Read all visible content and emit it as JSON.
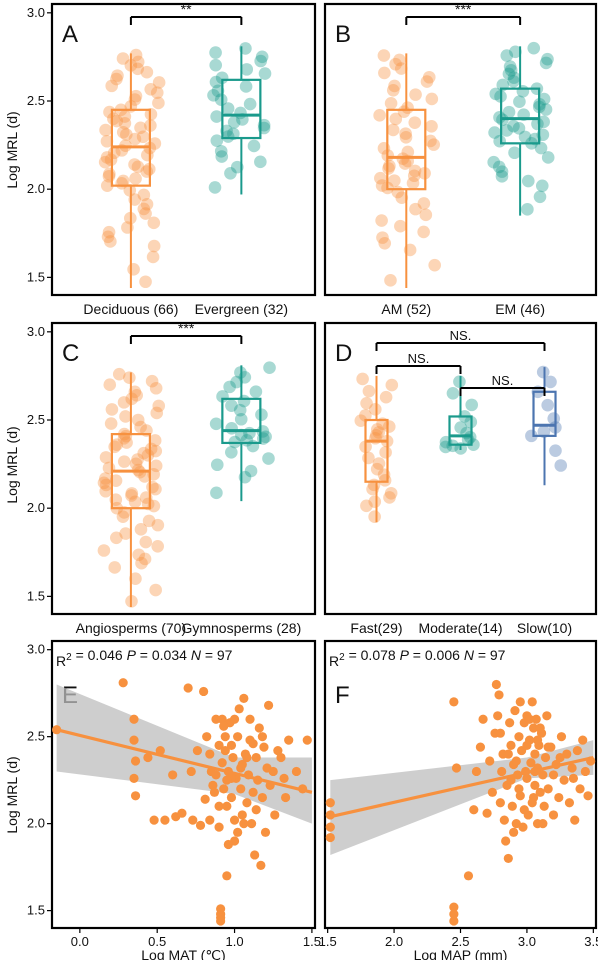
{
  "figure": {
    "y_axis_title": "Log MRL (d)",
    "colors": {
      "orange": "#F7913F",
      "teal": "#1A9A8C",
      "blue": "#4C75B0",
      "ci_band": "#BDBDBD"
    }
  },
  "chart_data": [
    {
      "panel": "A",
      "type": "box",
      "ylim": [
        1.4,
        3.05
      ],
      "yticks": [
        "1.5",
        "2.0",
        "2.5",
        "3.0"
      ],
      "significance": [
        {
          "between": [
            0,
            1
          ],
          "label": "**"
        }
      ],
      "groups": [
        {
          "label": "Deciduous (66)",
          "color": "#F7913F",
          "n": 66,
          "min": 1.44,
          "q1": 2.02,
          "median": 2.24,
          "q3": 2.45,
          "max": 2.77
        },
        {
          "label": "Evergreen (32)",
          "color": "#1A9A8C",
          "n": 32,
          "min": 1.97,
          "q1": 2.29,
          "median": 2.42,
          "q3": 2.62,
          "max": 2.81
        }
      ]
    },
    {
      "panel": "B",
      "type": "box",
      "ylim": [
        1.4,
        3.05
      ],
      "yticks": [],
      "significance": [
        {
          "between": [
            0,
            1
          ],
          "label": "***"
        }
      ],
      "groups": [
        {
          "label": "AM (52)",
          "color": "#F7913F",
          "n": 52,
          "min": 1.44,
          "q1": 2.0,
          "median": 2.18,
          "q3": 2.45,
          "max": 2.77
        },
        {
          "label": "EM (46)",
          "color": "#1A9A8C",
          "n": 46,
          "min": 1.85,
          "q1": 2.26,
          "median": 2.4,
          "q3": 2.57,
          "max": 2.81
        }
      ]
    },
    {
      "panel": "C",
      "type": "box",
      "ylim": [
        1.4,
        3.05
      ],
      "yticks": [
        "1.5",
        "2.0",
        "2.5",
        "3.0"
      ],
      "significance": [
        {
          "between": [
            0,
            1
          ],
          "label": "***"
        }
      ],
      "groups": [
        {
          "label": "Angiosperms (70)",
          "color": "#F7913F",
          "n": 70,
          "min": 1.44,
          "q1": 2.0,
          "median": 2.21,
          "q3": 2.42,
          "max": 2.77
        },
        {
          "label": "Gymnosperms (28)",
          "color": "#1A9A8C",
          "n": 28,
          "min": 2.04,
          "q1": 2.37,
          "median": 2.44,
          "q3": 2.62,
          "max": 2.81
        }
      ]
    },
    {
      "panel": "D",
      "type": "box",
      "ylim": [
        1.4,
        3.05
      ],
      "yticks": [],
      "significance": [
        {
          "between": [
            0,
            1
          ],
          "label": "NS."
        },
        {
          "between": [
            1,
            2
          ],
          "label": "NS."
        },
        {
          "between": [
            0,
            2
          ],
          "label": "NS."
        }
      ],
      "groups": [
        {
          "label": "Fast(29)",
          "color": "#F7913F",
          "n": 29,
          "min": 1.92,
          "q1": 2.15,
          "median": 2.38,
          "q3": 2.5,
          "max": 2.75
        },
        {
          "label": "Moderate(14)",
          "color": "#1A9A8C",
          "n": 14,
          "min": 2.33,
          "q1": 2.36,
          "median": 2.41,
          "q3": 2.52,
          "max": 2.75
        },
        {
          "label": "Slow(10)",
          "color": "#4C75B0",
          "n": 10,
          "min": 2.13,
          "q1": 2.41,
          "median": 2.47,
          "q3": 2.66,
          "max": 2.8
        }
      ]
    },
    {
      "panel": "E",
      "type": "scatter",
      "xlabel": "Log MAT (℃)",
      "xlim": [
        -0.18,
        1.52
      ],
      "ylim": [
        1.4,
        3.05
      ],
      "xticks": [
        "0.0",
        "0.5",
        "1.0",
        "1.5"
      ],
      "yticks": [
        "1.5",
        "2.0",
        "2.5",
        "3.0"
      ],
      "stats": {
        "r2": "0.046",
        "p": "0.034",
        "n": "97"
      },
      "fit": {
        "x": [
          -0.15,
          1.5
        ],
        "y": [
          2.54,
          2.18
        ]
      },
      "ci": {
        "x": [
          -0.15,
          1.0,
          1.5
        ],
        "upper": [
          2.8,
          2.38,
          2.38
        ],
        "lower": [
          2.3,
          2.17,
          2.0
        ]
      },
      "points": [
        [
          -0.15,
          2.54
        ],
        [
          0.28,
          2.81
        ],
        [
          0.35,
          2.6
        ],
        [
          0.35,
          2.48
        ],
        [
          0.36,
          2.36
        ],
        [
          0.35,
          2.26
        ],
        [
          0.36,
          2.16
        ],
        [
          0.44,
          2.38
        ],
        [
          0.48,
          2.02
        ],
        [
          0.52,
          2.42
        ],
        [
          0.55,
          2.02
        ],
        [
          0.6,
          2.28
        ],
        [
          0.62,
          2.04
        ],
        [
          0.66,
          2.06
        ],
        [
          0.7,
          2.78
        ],
        [
          0.72,
          2.3
        ],
        [
          0.73,
          2.02
        ],
        [
          0.76,
          2.42
        ],
        [
          0.78,
          1.99
        ],
        [
          0.8,
          2.76
        ],
        [
          0.81,
          2.14
        ],
        [
          0.82,
          2.5
        ],
        [
          0.84,
          2.02
        ],
        [
          0.85,
          2.3
        ],
        [
          0.86,
          2.22
        ],
        [
          0.88,
          2.6
        ],
        [
          0.88,
          2.28
        ],
        [
          0.9,
          1.98
        ],
        [
          0.9,
          2.45
        ],
        [
          0.91,
          1.51
        ],
        [
          0.91,
          1.48
        ],
        [
          0.91,
          1.46
        ],
        [
          0.91,
          1.44
        ],
        [
          0.92,
          2.6
        ],
        [
          0.92,
          2.35
        ],
        [
          0.93,
          2.2
        ],
        [
          0.94,
          2.5
        ],
        [
          0.94,
          2.42
        ],
        [
          0.95,
          2.1
        ],
        [
          0.95,
          1.7
        ],
        [
          0.96,
          2.3
        ],
        [
          0.97,
          2.58
        ],
        [
          0.98,
          2.45
        ],
        [
          0.98,
          2.15
        ],
        [
          0.99,
          2.38
        ],
        [
          1.0,
          2.02
        ],
        [
          1.0,
          1.9
        ],
        [
          1.01,
          2.26
        ],
        [
          1.02,
          2.5
        ],
        [
          1.03,
          2.66
        ],
        [
          1.04,
          2.2
        ],
        [
          1.05,
          2.05
        ],
        [
          1.05,
          2.34
        ],
        [
          1.06,
          2.72
        ],
        [
          1.07,
          2.4
        ],
        [
          1.08,
          2.12
        ],
        [
          1.09,
          2.28
        ],
        [
          1.1,
          2.6
        ],
        [
          1.1,
          2.48
        ],
        [
          1.11,
          2.0
        ],
        [
          1.12,
          2.18
        ],
        [
          1.13,
          1.82
        ],
        [
          1.14,
          2.38
        ],
        [
          1.15,
          2.25
        ],
        [
          1.16,
          2.55
        ],
        [
          1.17,
          1.76
        ],
        [
          1.18,
          2.15
        ],
        [
          1.19,
          2.44
        ],
        [
          1.2,
          1.95
        ],
        [
          1.21,
          2.32
        ],
        [
          1.22,
          2.68
        ],
        [
          1.23,
          2.22
        ],
        [
          1.25,
          2.3
        ],
        [
          1.26,
          2.05
        ],
        [
          1.28,
          2.42
        ],
        [
          1.3,
          2.38
        ],
        [
          1.32,
          2.26
        ],
        [
          1.33,
          2.15
        ],
        [
          1.35,
          2.48
        ],
        [
          1.4,
          2.3
        ],
        [
          1.44,
          2.2
        ],
        [
          1.47,
          2.48
        ],
        [
          0.98,
          2.26
        ],
        [
          1.02,
          1.95
        ],
        [
          1.06,
          2.0
        ],
        [
          0.87,
          2.18
        ],
        [
          0.93,
          2.56
        ],
        [
          1.08,
          2.38
        ],
        [
          1.14,
          2.08
        ],
        [
          0.96,
          1.88
        ],
        [
          1.0,
          2.6
        ],
        [
          1.12,
          2.46
        ],
        [
          0.9,
          2.1
        ],
        [
          1.04,
          2.32
        ],
        [
          0.84,
          2.4
        ],
        [
          1.18,
          2.5
        ],
        [
          0.95,
          2.25
        ]
      ]
    },
    {
      "panel": "F",
      "type": "scatter",
      "xlabel": "Log MAP (mm)",
      "xlim": [
        1.48,
        3.52
      ],
      "ylim": [
        1.4,
        3.05
      ],
      "xticks": [
        "1.5",
        "2.0",
        "2.5",
        "3.0",
        "3.5"
      ],
      "yticks": [],
      "stats": {
        "r2": "0.078",
        "p": "0.006",
        "n": "97"
      },
      "fit": {
        "x": [
          1.52,
          3.5
        ],
        "y": [
          2.04,
          2.38
        ]
      },
      "ci": {
        "x": [
          1.52,
          3.0,
          3.5
        ],
        "upper": [
          2.25,
          2.38,
          2.48
        ],
        "lower": [
          1.82,
          2.26,
          2.28
        ]
      },
      "points": [
        [
          1.52,
          2.12
        ],
        [
          1.52,
          2.05
        ],
        [
          1.52,
          1.98
        ],
        [
          1.52,
          1.92
        ],
        [
          2.45,
          2.7
        ],
        [
          2.47,
          2.32
        ],
        [
          2.45,
          1.52
        ],
        [
          2.45,
          1.48
        ],
        [
          2.45,
          1.44
        ],
        [
          2.56,
          1.7
        ],
        [
          2.6,
          2.08
        ],
        [
          2.62,
          2.3
        ],
        [
          2.65,
          2.44
        ],
        [
          2.67,
          2.6
        ],
        [
          2.7,
          2.06
        ],
        [
          2.72,
          2.36
        ],
        [
          2.74,
          2.18
        ],
        [
          2.76,
          2.52
        ],
        [
          2.77,
          2.8
        ],
        [
          2.78,
          2.62
        ],
        [
          2.79,
          2.74
        ],
        [
          2.8,
          2.12
        ],
        [
          2.81,
          2.3
        ],
        [
          2.82,
          2.4
        ],
        [
          2.83,
          2.02
        ],
        [
          2.84,
          1.9
        ],
        [
          2.85,
          2.22
        ],
        [
          2.86,
          1.8
        ],
        [
          2.87,
          2.58
        ],
        [
          2.88,
          2.45
        ],
        [
          2.89,
          2.1
        ],
        [
          2.9,
          2.34
        ],
        [
          2.91,
          2.65
        ],
        [
          2.92,
          2.0
        ],
        [
          2.93,
          2.28
        ],
        [
          2.94,
          2.5
        ],
        [
          2.95,
          2.16
        ],
        [
          2.96,
          2.42
        ],
        [
          2.97,
          1.98
        ],
        [
          2.98,
          2.58
        ],
        [
          2.99,
          2.3
        ],
        [
          3.0,
          2.62
        ],
        [
          3.0,
          2.26
        ],
        [
          3.01,
          2.05
        ],
        [
          3.02,
          2.48
        ],
        [
          3.03,
          2.35
        ],
        [
          3.04,
          2.7
        ],
        [
          3.05,
          2.15
        ],
        [
          3.05,
          2.55
        ],
        [
          3.06,
          2.4
        ],
        [
          3.06,
          2.22
        ],
        [
          3.07,
          2.6
        ],
        [
          3.08,
          2.0
        ],
        [
          3.08,
          2.32
        ],
        [
          3.09,
          2.45
        ],
        [
          3.1,
          2.18
        ],
        [
          3.11,
          2.52
        ],
        [
          3.12,
          2.28
        ],
        [
          3.13,
          2.1
        ],
        [
          3.14,
          2.38
        ],
        [
          3.15,
          2.62
        ],
        [
          3.16,
          2.2
        ],
        [
          3.18,
          2.44
        ],
        [
          3.2,
          2.05
        ],
        [
          3.22,
          2.34
        ],
        [
          3.24,
          2.15
        ],
        [
          3.26,
          2.5
        ],
        [
          3.28,
          2.25
        ],
        [
          3.3,
          2.4
        ],
        [
          3.32,
          2.12
        ],
        [
          3.34,
          2.32
        ],
        [
          3.36,
          2.02
        ],
        [
          3.38,
          2.42
        ],
        [
          3.4,
          2.2
        ],
        [
          3.42,
          2.48
        ],
        [
          3.44,
          2.3
        ],
        [
          3.46,
          2.16
        ],
        [
          3.48,
          2.36
        ],
        [
          2.9,
          1.95
        ],
        [
          2.95,
          2.7
        ],
        [
          3.0,
          2.45
        ],
        [
          3.04,
          2.12
        ],
        [
          2.88,
          2.25
        ],
        [
          3.1,
          2.55
        ],
        [
          2.98,
          2.08
        ],
        [
          3.02,
          2.6
        ],
        [
          2.86,
          2.4
        ],
        [
          3.12,
          2.0
        ],
        [
          3.06,
          2.3
        ],
        [
          2.94,
          2.2
        ],
        [
          3.16,
          2.44
        ],
        [
          3.2,
          2.28
        ],
        [
          2.8,
          2.52
        ],
        [
          3.08,
          2.48
        ],
        [
          2.92,
          2.36
        ],
        [
          3.25,
          2.38
        ],
        [
          3.35,
          2.26
        ]
      ]
    }
  ]
}
